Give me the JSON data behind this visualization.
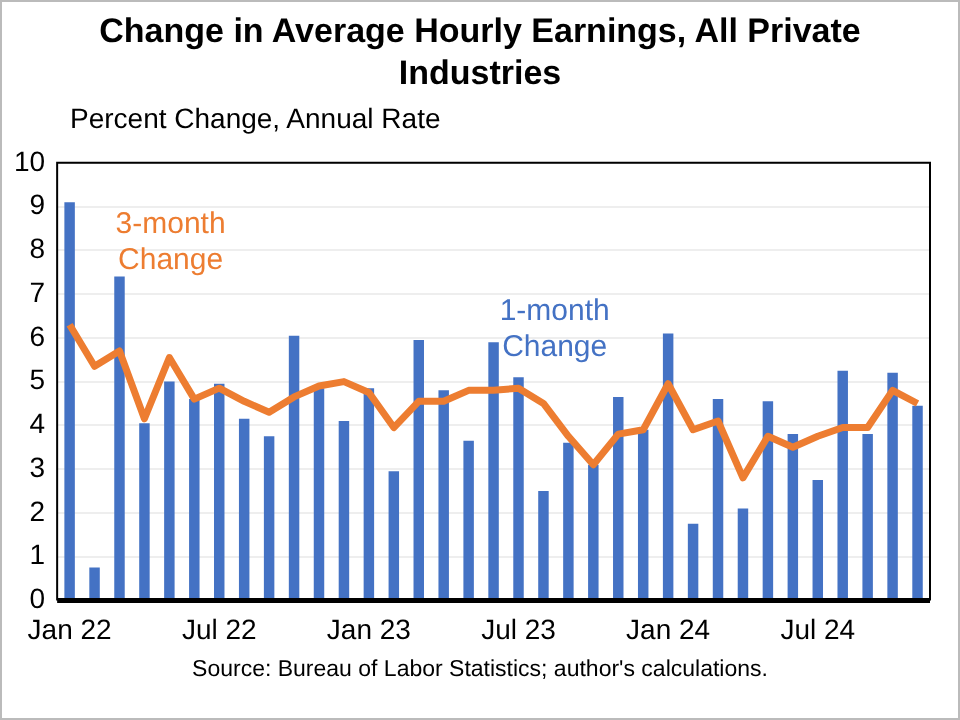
{
  "chart_data": {
    "type": "bar",
    "title": "Change in Average Hourly Earnings, All Private Industries",
    "ylabel": "Percent Change, Annual Rate",
    "categories": [
      "Jan 22",
      null,
      null,
      null,
      null,
      null,
      "Jul 22",
      null,
      null,
      null,
      null,
      null,
      "Jan 23",
      null,
      null,
      null,
      null,
      null,
      "Jul 23",
      null,
      null,
      null,
      null,
      null,
      "Jan 24",
      null,
      null,
      null,
      null,
      null,
      "Jul 24",
      null,
      null,
      null,
      null
    ],
    "series": [
      {
        "name": "1-month Change",
        "color": "#4472c4",
        "values": [
          9.1,
          0.75,
          7.4,
          4.05,
          5.0,
          4.6,
          4.95,
          4.15,
          3.75,
          6.05,
          4.85,
          4.1,
          4.85,
          2.95,
          5.95,
          4.8,
          3.65,
          5.9,
          5.1,
          2.5,
          3.6,
          3.1,
          4.65,
          3.9,
          6.1,
          1.75,
          4.6,
          2.1,
          4.55,
          3.8,
          2.75,
          5.25,
          3.8,
          5.2,
          4.45
        ]
      },
      {
        "name": "3-month Change",
        "type": "line",
        "color": "#ed7d31",
        "values": [
          6.3,
          5.35,
          5.7,
          4.15,
          5.55,
          4.6,
          4.85,
          4.55,
          4.3,
          4.65,
          4.9,
          5.0,
          4.75,
          3.95,
          4.55,
          4.55,
          4.8,
          4.8,
          4.85,
          4.5,
          3.75,
          3.1,
          3.8,
          3.9,
          4.95,
          3.9,
          4.1,
          2.8,
          3.75,
          3.5,
          3.75,
          3.95,
          3.95,
          4.8,
          4.5
        ]
      }
    ],
    "ylim": [
      0,
      10
    ],
    "yticks": [
      0,
      1,
      2,
      3,
      4,
      5,
      6,
      7,
      8,
      9,
      10
    ],
    "grid": "y",
    "legend": false,
    "marker": "none",
    "line_style": "solid",
    "annotations": [
      "Source: Bureau of Labor Statistics; author's calculations."
    ]
  }
}
